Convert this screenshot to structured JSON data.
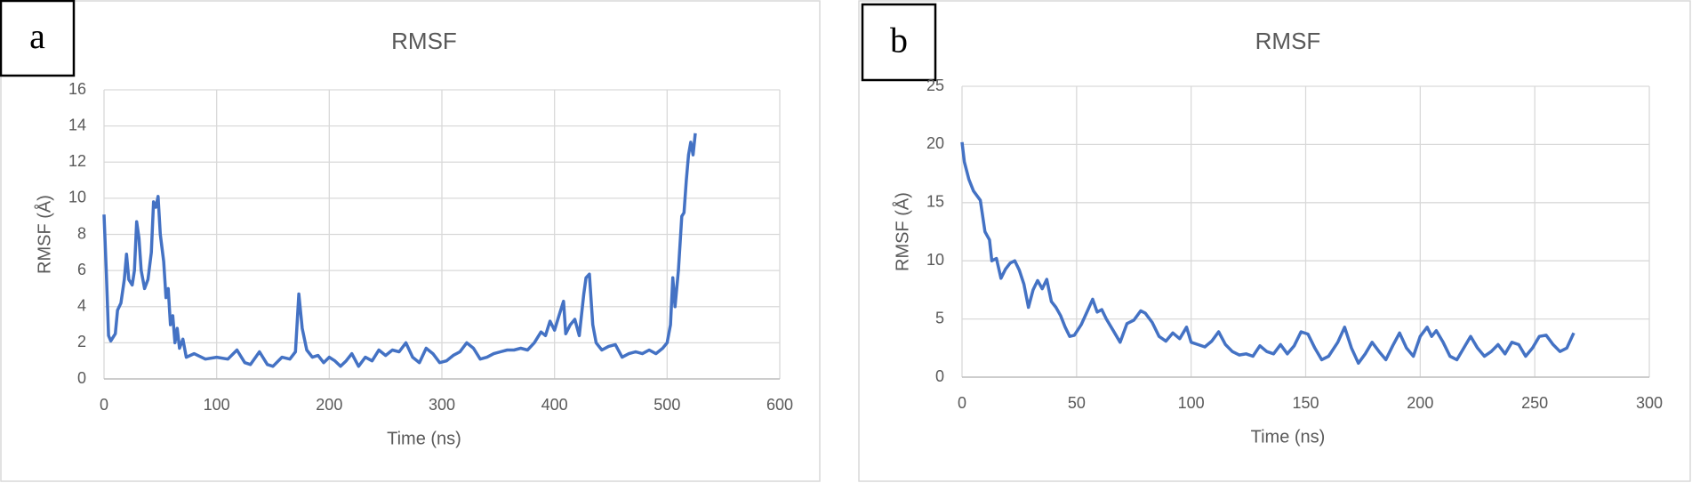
{
  "chart_data": [
    {
      "type": "line",
      "panel_label": "a",
      "title": "RMSF",
      "x_label": "Time (ns)",
      "y_label": "RMSF (Å)",
      "color": "#4472c4",
      "grid": true,
      "xlim": [
        0,
        600
      ],
      "xticks": [
        0,
        100,
        200,
        300,
        400,
        500,
        600
      ],
      "ylim": [
        0,
        16
      ],
      "yticks": [
        0,
        2,
        4,
        6,
        8,
        10,
        12,
        14,
        16
      ],
      "x": [
        0,
        2,
        4,
        6,
        8,
        10,
        12,
        15,
        18,
        20,
        22,
        25,
        27,
        29,
        31,
        33,
        36,
        39,
        42,
        44,
        46,
        48,
        50,
        53,
        55,
        57,
        59,
        61,
        63,
        65,
        67,
        70,
        73,
        80,
        90,
        100,
        110,
        118,
        125,
        130,
        138,
        145,
        150,
        158,
        165,
        170,
        173,
        176,
        180,
        185,
        190,
        195,
        200,
        205,
        210,
        215,
        220,
        226,
        232,
        238,
        244,
        250,
        256,
        262,
        268,
        274,
        280,
        286,
        292,
        298,
        304,
        310,
        316,
        322,
        328,
        334,
        340,
        346,
        352,
        358,
        364,
        370,
        376,
        382,
        388,
        392,
        396,
        400,
        404,
        408,
        410,
        414,
        418,
        422,
        426,
        428,
        431,
        434,
        437,
        442,
        448,
        454,
        460,
        466,
        472,
        478,
        484,
        490,
        496,
        500,
        503,
        505,
        507,
        510,
        513,
        515,
        517,
        519,
        521,
        523,
        525
      ],
      "values": [
        9.1,
        6,
        2.4,
        2.1,
        2.3,
        2.5,
        3.8,
        4.2,
        5.5,
        6.9,
        5.5,
        5.2,
        6,
        8.7,
        7.8,
        6,
        5,
        5.5,
        7,
        9.8,
        9.5,
        10.1,
        8,
        6.5,
        4.5,
        5,
        3,
        3.5,
        2,
        2.8,
        1.7,
        2.2,
        1.2,
        1.4,
        1.1,
        1.2,
        1.1,
        1.6,
        0.9,
        0.8,
        1.5,
        0.8,
        0.7,
        1.2,
        1.1,
        1.5,
        4.7,
        2.8,
        1.6,
        1.2,
        1.3,
        0.9,
        1.2,
        1.0,
        0.7,
        1.0,
        1.4,
        0.7,
        1.2,
        1.0,
        1.6,
        1.3,
        1.6,
        1.5,
        2.0,
        1.2,
        0.9,
        1.7,
        1.4,
        0.9,
        1.0,
        1.3,
        1.5,
        2.0,
        1.7,
        1.1,
        1.2,
        1.4,
        1.5,
        1.6,
        1.6,
        1.7,
        1.6,
        2.0,
        2.6,
        2.4,
        3.2,
        2.7,
        3.5,
        4.3,
        2.5,
        3.0,
        3.3,
        2.4,
        4.7,
        5.6,
        5.8,
        3.0,
        2.0,
        1.6,
        1.8,
        1.9,
        1.2,
        1.4,
        1.5,
        1.4,
        1.6,
        1.4,
        1.7,
        2.0,
        3.0,
        5.6,
        4.0,
        6.0,
        9.0,
        9.2,
        11,
        12.4,
        13.1,
        12.4,
        13.6
      ]
    },
    {
      "type": "line",
      "panel_label": "b",
      "title": "RMSF",
      "x_label": "Time (ns)",
      "y_label": "RMSF (Å)",
      "color": "#4472c4",
      "grid": true,
      "xlim": [
        0,
        300
      ],
      "xticks": [
        0,
        50,
        100,
        150,
        200,
        250,
        300
      ],
      "ylim": [
        0,
        25
      ],
      "yticks": [
        0,
        5,
        10,
        15,
        20,
        25
      ],
      "x": [
        0,
        1,
        3,
        5,
        8,
        10,
        12,
        13,
        15,
        17,
        19,
        21,
        23,
        25,
        27,
        29,
        31,
        33,
        35,
        37,
        39,
        41,
        43,
        45,
        47,
        49,
        52,
        55,
        57,
        59,
        61,
        63,
        66,
        69,
        72,
        75,
        78,
        80,
        83,
        86,
        89,
        92,
        95,
        98,
        100,
        103,
        106,
        109,
        112,
        115,
        118,
        121,
        124,
        127,
        130,
        133,
        136,
        139,
        142,
        145,
        148,
        151,
        154,
        157,
        160,
        164,
        167,
        170,
        173,
        176,
        179,
        182,
        185,
        188,
        191,
        194,
        197,
        200,
        203,
        205,
        207,
        210,
        213,
        216,
        219,
        222,
        225,
        228,
        231,
        234,
        237,
        240,
        243,
        246,
        249,
        252,
        255,
        258,
        261,
        264,
        267
      ],
      "values": [
        20.2,
        18.5,
        17,
        16,
        15.2,
        12.5,
        11.8,
        10,
        10.2,
        8.5,
        9.3,
        9.8,
        10,
        9.2,
        8,
        6,
        7.5,
        8.3,
        7.6,
        8.4,
        6.5,
        6,
        5.3,
        4.3,
        3.5,
        3.6,
        4.5,
        5.8,
        6.7,
        5.6,
        5.8,
        5,
        4,
        3,
        4.6,
        4.9,
        5.7,
        5.5,
        4.7,
        3.5,
        3.1,
        3.8,
        3.3,
        4.3,
        3,
        2.8,
        2.6,
        3.1,
        3.9,
        2.8,
        2.2,
        1.9,
        2.0,
        1.8,
        2.7,
        2.2,
        2.0,
        2.8,
        2.0,
        2.7,
        3.9,
        3.7,
        2.5,
        1.5,
        1.8,
        3.0,
        4.3,
        2.5,
        1.2,
        2.0,
        3.0,
        2.2,
        1.5,
        2.7,
        3.8,
        2.5,
        1.8,
        3.5,
        4.3,
        3.5,
        4.0,
        3,
        1.8,
        1.5,
        2.5,
        3.5,
        2.5,
        1.8,
        2.2,
        2.8,
        2.0,
        3.0,
        2.8,
        1.8,
        2.5,
        3.5,
        3.6,
        2.8,
        2.2,
        2.5,
        3.8
      ]
    }
  ]
}
